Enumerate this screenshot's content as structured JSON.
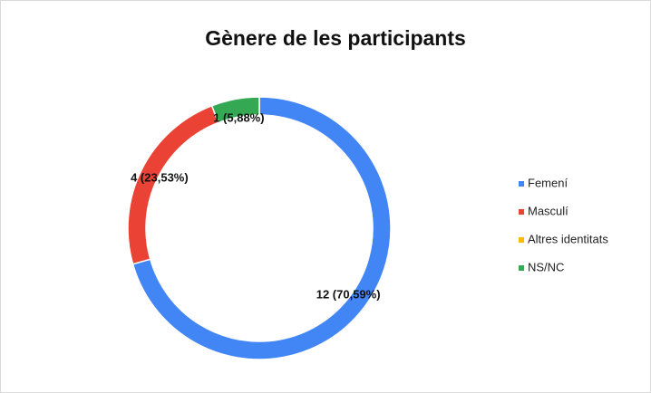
{
  "chart_data": {
    "type": "donut",
    "title": "Gènere de les participants",
    "categories": [
      "Femení",
      "Masculí",
      "Altres identitats",
      "NS/NC"
    ],
    "values": [
      12,
      4,
      0,
      1
    ],
    "value_labels": [
      "12 (70,59%)",
      "4 (23,53%)",
      null,
      "1 (5,88%)"
    ],
    "colors": [
      "#4285f4",
      "#ea4335",
      "#fbbc04",
      "#34a853"
    ],
    "legend": "right"
  }
}
